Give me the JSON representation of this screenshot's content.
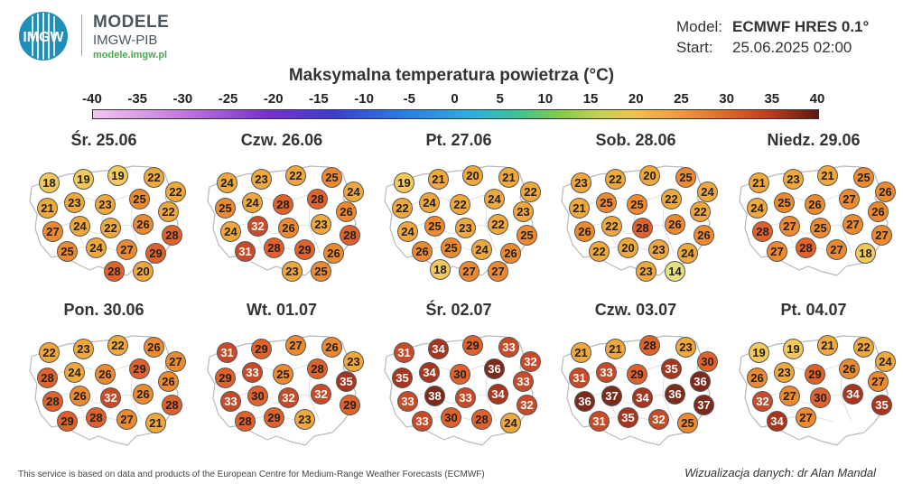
{
  "header": {
    "logo_abbrev": "IMGW",
    "logo_title": "MODELE",
    "logo_org": "IMGW-PIB",
    "logo_url": "modele.imgw.pl",
    "model_label": "Model:",
    "model_value": "ECMWF HRES 0.1°",
    "start_label": "Start:",
    "start_value": "25.06.2025 02:00"
  },
  "title": "Maksymalna temperatura powietrza (°C)",
  "scale": {
    "min": -40,
    "max": 40,
    "ticks": [
      "-40",
      "-35",
      "-30",
      "-25",
      "-20",
      "-15",
      "-10",
      "-5",
      "0",
      "5",
      "10",
      "15",
      "20",
      "25",
      "30",
      "35",
      "40"
    ]
  },
  "colors": {
    "map_fill": "#ffffff",
    "border": "#b8b8b8",
    "t14": "#e8e07a",
    "t18_19": "#f2c95a",
    "t20_24": "#f0a83a",
    "t25_27": "#ee8a2e",
    "t28_30": "#e0622a",
    "t31_33": "#c84a26",
    "t34_35": "#a8361f",
    "t36_38": "#7e2a1a"
  },
  "maps": [
    {
      "date": "Śr. 25.06",
      "values": [
        "18",
        "19",
        "19",
        "22",
        "22",
        "21",
        "23",
        "23",
        "25",
        "22",
        "27",
        "24",
        "22",
        "26",
        "28",
        "25",
        "24",
        "27",
        "29",
        "28",
        "20"
      ]
    },
    {
      "date": "Czw. 26.06",
      "values": [
        "24",
        "23",
        "22",
        "25",
        "24",
        "25",
        "24",
        "28",
        "28",
        "26",
        "24",
        "32",
        "26",
        "23",
        "28",
        "31",
        "28",
        "29",
        "26",
        "23",
        "25"
      ]
    },
    {
      "date": "Pt. 27.06",
      "values": [
        "19",
        "21",
        "20",
        "21",
        "22",
        "22",
        "24",
        "22",
        "24",
        "23",
        "24",
        "25",
        "23",
        "22",
        "25",
        "26",
        "25",
        "24",
        "26",
        "27",
        "27",
        "18"
      ]
    },
    {
      "date": "Sob. 28.06",
      "values": [
        "23",
        "22",
        "20",
        "25",
        "24",
        "21",
        "25",
        "25",
        "22",
        "22",
        "26",
        "22",
        "28",
        "26",
        "26",
        "22",
        "20",
        "23",
        "24",
        "23",
        "14"
      ]
    },
    {
      "date": "Niedz. 29.06",
      "values": [
        "21",
        "23",
        "21",
        "25",
        "26",
        "24",
        "25",
        "26",
        "27",
        "26",
        "28",
        "27",
        "25",
        "27",
        "27",
        "27",
        "28",
        "27",
        "18"
      ]
    },
    {
      "date": "Pon. 30.06",
      "values": [
        "22",
        "23",
        "22",
        "26",
        "27",
        "28",
        "24",
        "26",
        "29",
        "26",
        "28",
        "26",
        "32",
        "26",
        "28",
        "29",
        "28",
        "27",
        "21"
      ]
    },
    {
      "date": "Wt. 01.07",
      "values": [
        "31",
        "29",
        "27",
        "26",
        "23",
        "29",
        "33",
        "25",
        "28",
        "35",
        "33",
        "30",
        "32",
        "32",
        "29",
        "28",
        "29",
        "23"
      ]
    },
    {
      "date": "Śr. 02.07",
      "values": [
        "31",
        "34",
        "29",
        "33",
        "32",
        "35",
        "34",
        "30",
        "36",
        "33",
        "33",
        "38",
        "33",
        "34",
        "32",
        "33",
        "30",
        "28",
        "24"
      ]
    },
    {
      "date": "Czw. 03.07",
      "values": [
        "21",
        "21",
        "28",
        "23",
        "30",
        "31",
        "33",
        "29",
        "35",
        "36",
        "36",
        "37",
        "34",
        "36",
        "37",
        "31",
        "35",
        "32",
        "25"
      ]
    },
    {
      "date": "Pt. 04.07",
      "values": [
        "19",
        "19",
        "21",
        "22",
        "24",
        "26",
        "23",
        "29",
        "26",
        "27",
        "32",
        "27",
        "30",
        "34",
        "35",
        "34",
        "27"
      ]
    }
  ],
  "footer": {
    "credit": "This service is based on data and products of the European Centre for Medium-Range Weather Forecasts (ECMWF)",
    "author": "Wizualizacja danych: dr Alan Mandal"
  }
}
